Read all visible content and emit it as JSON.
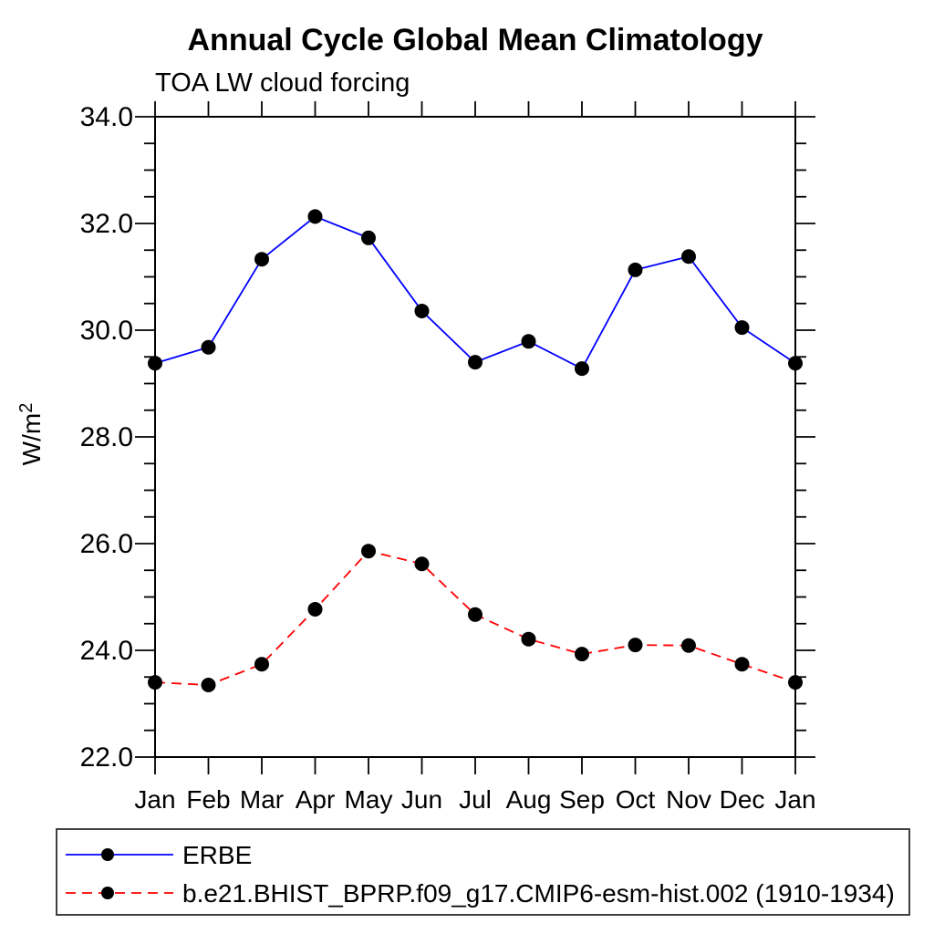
{
  "chart_data": {
    "type": "line",
    "title": "Annual Cycle Global Mean Climatology",
    "subtitle": "TOA LW cloud forcing",
    "ylabel_base": "W/m",
    "ylabel_exponent": "2",
    "categories": [
      "Jan",
      "Feb",
      "Mar",
      "Apr",
      "May",
      "Jun",
      "Jul",
      "Aug",
      "Sep",
      "Oct",
      "Nov",
      "Dec",
      "Jan"
    ],
    "ylim": [
      22.0,
      34.0
    ],
    "ytick_major_step": 2.0,
    "ytick_minor_step": 0.5,
    "ytick_labels": [
      "22.0",
      "24.0",
      "26.0",
      "28.0",
      "30.0",
      "32.0",
      "34.0"
    ],
    "grid": false,
    "legend_position": "bottom",
    "axis_color": "#000000",
    "marker_color": "#000000",
    "legend_border_color": "#404040",
    "series": [
      {
        "name": "ERBE",
        "color": "#0000ff",
        "line_style": "solid",
        "marker": "filled-circle",
        "values": [
          29.38,
          29.68,
          31.33,
          32.13,
          31.73,
          30.36,
          29.4,
          29.79,
          29.28,
          31.13,
          31.38,
          30.05,
          29.38
        ]
      },
      {
        "name": "b.e21.BHIST_BPRP.f09_g17.CMIP6-esm-hist.002 (1910-1934)",
        "color": "#ff0000",
        "line_style": "dashed",
        "marker": "filled-circle",
        "values": [
          23.4,
          23.35,
          23.74,
          24.77,
          25.86,
          25.62,
          24.67,
          24.21,
          23.93,
          24.1,
          24.09,
          23.74,
          23.4
        ]
      }
    ]
  }
}
